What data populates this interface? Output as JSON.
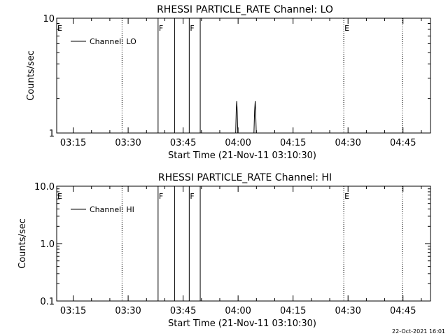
{
  "footer": {
    "timestamp": "22-Oct-2021 16:01"
  },
  "chart_data": [
    {
      "type": "line",
      "title": "RHESSI PARTICLE_RATE Channel: LO",
      "xlabel": "Start Time (21-Nov-11 03:10:30)",
      "ylabel": "Counts/sec",
      "yscale": "log",
      "xlim": [
        "03:10:30",
        "04:52:30"
      ],
      "ylim": [
        1,
        10
      ],
      "x_ticks": [
        "03:15",
        "03:30",
        "03:45",
        "04:00",
        "04:15",
        "04:30",
        "04:45"
      ],
      "y_ticks": [
        "1",
        "10"
      ],
      "grid": false,
      "legend": {
        "position": "top-left",
        "entries": [
          "Channel: LO"
        ]
      },
      "series": [
        {
          "name": "Channel: LO",
          "color": "#000000",
          "points": [
            [
              "03:59:20",
              1
            ],
            [
              "03:59:30",
              1.6
            ],
            [
              "03:59:38",
              1.9
            ],
            [
              "03:59:46",
              1.55
            ],
            [
              "03:59:55",
              1
            ],
            [
              "04:04:20",
              1
            ],
            [
              "04:04:30",
              1.55
            ],
            [
              "04:04:40",
              1.9
            ],
            [
              "04:04:48",
              1.5
            ],
            [
              "04:04:58",
              1
            ]
          ]
        }
      ],
      "vlines": [
        {
          "time": "03:28:20",
          "style": "dotted",
          "label": ""
        },
        {
          "time": "03:38:10",
          "style": "solid",
          "label": "F"
        },
        {
          "time": "03:42:40",
          "style": "solid",
          "label": ""
        },
        {
          "time": "03:46:40",
          "style": "solid",
          "label": "F"
        },
        {
          "time": "03:49:40",
          "style": "solid",
          "label": ""
        },
        {
          "time": "04:28:50",
          "style": "dotted",
          "label": "E"
        },
        {
          "time": "04:44:50",
          "style": "dotted",
          "label": ""
        }
      ],
      "edge_label": "E"
    },
    {
      "type": "line",
      "title": "RHESSI PARTICLE_RATE Channel: HI",
      "xlabel": "Start Time (21-Nov-11 03:10:30)",
      "ylabel": "Counts/sec",
      "yscale": "log",
      "xlim": [
        "03:10:30",
        "04:52:30"
      ],
      "ylim": [
        0.1,
        10
      ],
      "x_ticks": [
        "03:15",
        "03:30",
        "03:45",
        "04:00",
        "04:15",
        "04:30",
        "04:45"
      ],
      "y_ticks": [
        "0.1",
        "1.0",
        "10.0"
      ],
      "grid": false,
      "legend": {
        "position": "top-left",
        "entries": [
          "Channel: HI"
        ]
      },
      "series": [
        {
          "name": "Channel: HI",
          "color": "#000000",
          "points": []
        }
      ],
      "vlines": [
        {
          "time": "03:28:20",
          "style": "dotted",
          "label": ""
        },
        {
          "time": "03:38:10",
          "style": "solid",
          "label": "F"
        },
        {
          "time": "03:42:40",
          "style": "solid",
          "label": ""
        },
        {
          "time": "03:46:40",
          "style": "solid",
          "label": "F"
        },
        {
          "time": "03:49:40",
          "style": "solid",
          "label": ""
        },
        {
          "time": "04:28:50",
          "style": "dotted",
          "label": "E"
        },
        {
          "time": "04:44:50",
          "style": "dotted",
          "label": ""
        }
      ],
      "edge_label": "E"
    }
  ]
}
